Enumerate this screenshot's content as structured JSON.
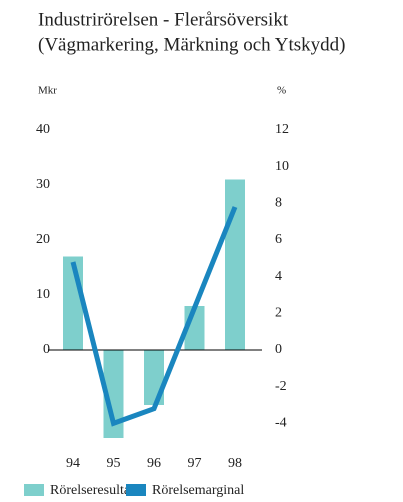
{
  "chart_data": {
    "type": "bar",
    "title": "Industrirörelsen - Flerårsöversikt",
    "subtitle": "(Vägmarkering, Märkning och Ytskydd)",
    "y_label": "Mkr",
    "y2_label": "%",
    "categories": [
      "94",
      "95",
      "96",
      "97",
      "98"
    ],
    "series": [
      {
        "name": "Rörelseresultat",
        "type": "bar",
        "color": "#7ecfcc",
        "axis": "y",
        "values": [
          17,
          -16,
          -10,
          8,
          31
        ]
      },
      {
        "name": "Rörelsemarginal",
        "type": "line",
        "color": "#1a86bf",
        "axis": "y2",
        "values": [
          4.8,
          -4.0,
          -3.2,
          2.3,
          7.8
        ]
      }
    ],
    "ylim": [
      -16,
      40
    ],
    "yticks": [
      0,
      10,
      20,
      30,
      40
    ],
    "y2lim": [
      -4.8,
      12
    ],
    "y2ticks": [
      -4,
      -2,
      0,
      2,
      4,
      6,
      8,
      10,
      12
    ]
  }
}
